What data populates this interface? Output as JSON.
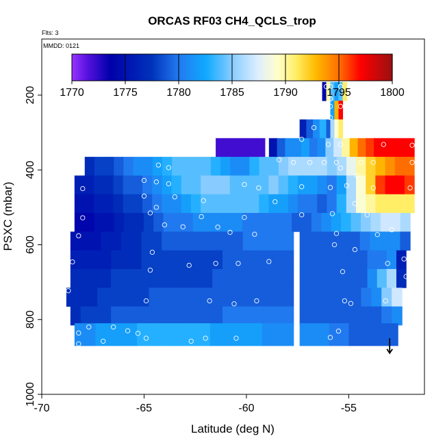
{
  "chart_data": {
    "type": "heatmap",
    "title": "ORCAS RF03 CH4_QCLS_trop",
    "flights_note": "Flts: 3",
    "date_note": "MMDD: 0121",
    "xlabel": "Latitude (deg N)",
    "ylabel": "PSXC (mbar)",
    "xlim": [
      -70,
      -51.3
    ],
    "ylim": [
      1000,
      50
    ],
    "y_reversed": true,
    "x_ticks": [
      -70,
      -65,
      -60,
      -55
    ],
    "y_ticks": [
      200,
      400,
      600,
      800,
      1000
    ],
    "grid": false,
    "colorbar": {
      "min": 1770,
      "max": 1800,
      "ticks": [
        1770,
        1775,
        1780,
        1785,
        1790,
        1795,
        1800
      ],
      "placement": "top-inside"
    },
    "arrow_note": {
      "x": -53,
      "y_from": 850,
      "y_to": 890
    },
    "rows": [
      {
        "p": 190,
        "h": 50,
        "segments": [
          {
            "x0": -56.3,
            "x1": -56.1,
            "values": [
              1774
            ]
          },
          {
            "x0": -56.1,
            "x1": -55.9,
            "values": [
              1790
            ]
          },
          {
            "x0": -55.9,
            "x1": -55.3,
            "values": [
              1784,
              1782,
              1784
            ]
          },
          {
            "x0": -55.3,
            "x1": -55.1,
            "values": [
              1791
            ]
          }
        ]
      },
      {
        "p": 240,
        "h": 50,
        "segments": [
          {
            "x0": -55.9,
            "x1": -55.7,
            "values": [
              1782
            ]
          },
          {
            "x0": -55.7,
            "x1": -55.5,
            "values": [
              1793
            ]
          },
          {
            "x0": -55.5,
            "x1": -55.3,
            "values": [
              1797
            ]
          }
        ]
      },
      {
        "p": 290,
        "h": 50,
        "segments": [
          {
            "x0": -57.4,
            "x1": -56.1,
            "values": [
              1776,
              1779,
              1781,
              1783
            ]
          },
          {
            "x0": -56.1,
            "x1": -55.9,
            "values": [
              1779
            ]
          },
          {
            "x0": -55.9,
            "x1": -55.3,
            "values": [
              1786,
              1789,
              1791
            ]
          }
        ]
      },
      {
        "p": 340,
        "h": 50,
        "segments": [
          {
            "x0": -61.5,
            "x1": -59.1,
            "values": [
              1772,
              1772
            ]
          },
          {
            "x0": -58.9,
            "x1": -51.8,
            "values": [
              1775,
              1779,
              1781,
              1781,
              1782,
              1780,
              1781,
              1785,
              1787,
              1790,
              1793,
              1795,
              1796,
              1797,
              1797,
              1797,
              1797,
              1797
            ]
          }
        ]
      },
      {
        "p": 390,
        "h": 50,
        "segments": [
          {
            "x0": -67.9,
            "x1": -51.8,
            "values": [
              1777,
              1778,
              1778,
              1779,
              1780,
              1781,
              1781,
              1782,
              1783,
              1784,
              1784,
              1784,
              1784,
              1783,
              1782,
              1781,
              1781,
              1783,
              1784,
              1784,
              1785,
              1786,
              1786,
              1786,
              1786,
              1785,
              1786,
              1788,
              1790,
              1792,
              1793,
              1794,
              1795,
              1795
            ]
          }
        ]
      },
      {
        "p": 440,
        "h": 50,
        "segments": [
          {
            "x0": -68.4,
            "x1": -51.8,
            "values": [
              1776,
              1776,
              1777,
              1777,
              1778,
              1779,
              1779,
              1780,
              1781,
              1782,
              1783,
              1784,
              1784,
              1785,
              1785,
              1785,
              1784,
              1784,
              1784,
              1784,
              1785,
              1784,
              1783,
              1782,
              1782,
              1781,
              1780,
              1782,
              1786,
              1789,
              1792,
              1796,
              1797,
              1797,
              1796
            ]
          }
        ]
      },
      {
        "p": 490,
        "h": 50,
        "segments": [
          {
            "x0": -68.4,
            "x1": -51.8,
            "values": [
              1775,
              1775,
              1776,
              1776,
              1777,
              1778,
              1778,
              1779,
              1780,
              1781,
              1781,
              1782,
              1783,
              1784,
              1784,
              1784,
              1784,
              1784,
              1784,
              1783,
              1782,
              1782,
              1781,
              1780,
              1780,
              1779,
              1780,
              1783,
              1786,
              1789,
              1790,
              1791,
              1791,
              1791,
              1791
            ]
          }
        ]
      },
      {
        "p": 540,
        "h": 50,
        "segments": [
          {
            "x0": -68.4,
            "x1": -52.0,
            "values": [
              1774,
              1774,
              1775,
              1775,
              1776,
              1777,
              1777,
              1778,
              1779,
              1780,
              1780,
              1780,
              1781,
              1781,
              1781,
              1781,
              1781,
              1780,
              1780,
              1780,
              1780,
              1780,
              1779,
              1779,
              1780,
              1781,
              1782,
              1783,
              1784,
              1785,
              1786,
              1787,
              1787,
              1786
            ]
          }
        ]
      },
      {
        "p": 590,
        "h": 50,
        "segments": [
          {
            "x0": -68.6,
            "x1": -57.7,
            "values": [
              1775,
              1775,
              1775,
              1776,
              1776,
              1777,
              1777,
              1778,
              1778,
              1779,
              1779,
              1779,
              1779,
              1779,
              1779,
              1779,
              1779,
              1780,
              1780,
              1780,
              1780,
              1780
            ]
          },
          {
            "x0": -57.4,
            "x1": -52.0,
            "values": [
              1779,
              1779,
              1779,
              1779,
              1779,
              1779,
              1780,
              1781,
              1781,
              1781,
              1779
            ]
          }
        ]
      },
      {
        "p": 640,
        "h": 50,
        "segments": [
          {
            "x0": -68.6,
            "x1": -57.7,
            "values": [
              1776,
              1776,
              1776,
              1776,
              1777,
              1777,
              1777,
              1778,
              1778,
              1778,
              1778,
              1778,
              1778,
              1778,
              1778,
              1779,
              1779,
              1779,
              1779,
              1779,
              1779,
              1779
            ]
          },
          {
            "x0": -57.4,
            "x1": -52.2,
            "values": [
              1779,
              1779,
              1779,
              1779,
              1779,
              1779,
              1779,
              1780,
              1780,
              1781,
              1776
            ]
          }
        ]
      },
      {
        "p": 690,
        "h": 50,
        "segments": [
          {
            "x0": -68.6,
            "x1": -57.7,
            "values": [
              1777,
              1777,
              1777,
              1777,
              1778,
              1778,
              1778,
              1778,
              1778,
              1778,
              1778,
              1778,
              1778,
              1778,
              1779,
              1779,
              1779,
              1779,
              1779,
              1779,
              1779,
              1779
            ]
          },
          {
            "x0": -57.4,
            "x1": -52.2,
            "values": [
              1779,
              1779,
              1779,
              1779,
              1779,
              1779,
              1779,
              1781,
              1784,
              1786,
              1777
            ]
          }
        ]
      },
      {
        "p": 740,
        "h": 50,
        "segments": [
          {
            "x0": -68.8,
            "x1": -57.7,
            "values": [
              1777,
              1777,
              1777,
              1778,
              1778,
              1778,
              1778,
              1778,
              1779,
              1779,
              1779,
              1779,
              1779,
              1779,
              1779,
              1779,
              1779,
              1779,
              1779,
              1779,
              1779,
              1779
            ]
          },
          {
            "x0": -57.4,
            "x1": -52.4,
            "values": [
              1779,
              1779,
              1779,
              1779,
              1779,
              1779,
              1780,
              1781,
              1785,
              1787
            ]
          }
        ]
      },
      {
        "p": 790,
        "h": 50,
        "segments": [
          {
            "x0": -68.6,
            "x1": -57.7,
            "values": [
              1777,
              1778,
              1778,
              1778,
              1779,
              1779,
              1779,
              1779,
              1779,
              1779,
              1779,
              1779,
              1779,
              1779,
              1779,
              1780,
              1780,
              1780,
              1780,
              1780,
              1780,
              1780
            ]
          },
          {
            "x0": -57.4,
            "x1": -52.4,
            "values": [
              1779,
              1779,
              1779,
              1779,
              1779,
              1779,
              1779,
              1779,
              1780,
              1781
            ]
          }
        ]
      },
      {
        "p": 840,
        "h": 60,
        "segments": [
          {
            "x0": -68.4,
            "x1": -57.7,
            "values": [
              1781,
              1781,
              1782,
              1782,
              1782,
              1782,
              1783,
              1783,
              1783,
              1783,
              1783,
              1783,
              1783,
              1782,
              1782,
              1782,
              1782,
              1782,
              1781,
              1781,
              1781
            ]
          },
          {
            "x0": -57.4,
            "x1": -52.6,
            "values": [
              1781,
              1781,
              1781,
              1780,
              1780,
              1779,
              1779,
              1779,
              1779,
              1779
            ]
          }
        ]
      }
    ],
    "points": [
      [
        -56.1,
        177
      ],
      [
        -55.9,
        177
      ],
      [
        -55.4,
        177
      ],
      [
        -55.9,
        210
      ],
      [
        -55.9,
        230
      ],
      [
        -55.4,
        230
      ],
      [
        -55.9,
        260
      ],
      [
        -56.7,
        287
      ],
      [
        -57.3,
        318
      ],
      [
        -56.0,
        332
      ],
      [
        -55.4,
        332
      ],
      [
        -53.3,
        332
      ],
      [
        -51.9,
        334
      ],
      [
        -58.4,
        373
      ],
      [
        -57.7,
        380
      ],
      [
        -56.9,
        380
      ],
      [
        -56.2,
        380
      ],
      [
        -55.6,
        380
      ],
      [
        -54.4,
        380
      ],
      [
        -53.8,
        380
      ],
      [
        -51.9,
        380
      ],
      [
        -64.3,
        387
      ],
      [
        -63.8,
        394
      ],
      [
        -55.4,
        395
      ],
      [
        -54.6,
        415
      ],
      [
        -65.0,
        428
      ],
      [
        -64.4,
        432
      ],
      [
        -63.8,
        437
      ],
      [
        -60.1,
        439
      ],
      [
        -59.4,
        448
      ],
      [
        -57.3,
        445
      ],
      [
        -55.9,
        447
      ],
      [
        -55.1,
        442
      ],
      [
        -53.8,
        448
      ],
      [
        -52.0,
        448
      ],
      [
        -68.0,
        450
      ],
      [
        -65.0,
        470
      ],
      [
        -63.5,
        472
      ],
      [
        -62.1,
        482
      ],
      [
        -58.6,
        485
      ],
      [
        -54.7,
        490
      ],
      [
        -64.4,
        500
      ],
      [
        -68.0,
        528
      ],
      [
        -64.7,
        515
      ],
      [
        -62.2,
        525
      ],
      [
        -60.1,
        527
      ],
      [
        -57.3,
        520
      ],
      [
        -55.8,
        517
      ],
      [
        -54.1,
        520
      ],
      [
        -64.0,
        547
      ],
      [
        -63.1,
        552
      ],
      [
        -61.4,
        553
      ],
      [
        -60.8,
        567
      ],
      [
        -59.6,
        572
      ],
      [
        -55.6,
        570
      ],
      [
        -53.6,
        573
      ],
      [
        -52.9,
        560
      ],
      [
        -68.2,
        576
      ],
      [
        -55.7,
        600
      ],
      [
        -54.7,
        613
      ],
      [
        -64.6,
        620
      ],
      [
        -64.7,
        668
      ],
      [
        -62.8,
        655
      ],
      [
        -61.5,
        650
      ],
      [
        -60.4,
        650
      ],
      [
        -58.9,
        645
      ],
      [
        -55.3,
        672
      ],
      [
        -53.1,
        650
      ],
      [
        -52.3,
        638
      ],
      [
        -52.2,
        685
      ],
      [
        -68.5,
        646
      ],
      [
        -68.7,
        723
      ],
      [
        -64.9,
        750
      ],
      [
        -61.8,
        750
      ],
      [
        -60.6,
        758
      ],
      [
        -59.5,
        750
      ],
      [
        -55.2,
        750
      ],
      [
        -54.9,
        757
      ],
      [
        -53.2,
        750
      ],
      [
        -67.7,
        820
      ],
      [
        -68.2,
        836
      ],
      [
        -66.5,
        820
      ],
      [
        -65.8,
        830
      ],
      [
        -65.3,
        837
      ],
      [
        -64.9,
        850
      ],
      [
        -62.7,
        858
      ],
      [
        -62.0,
        850
      ],
      [
        -60.5,
        850
      ],
      [
        -55.9,
        848
      ],
      [
        -55.5,
        831
      ],
      [
        -67.0,
        858
      ],
      [
        -68.2,
        865
      ]
    ]
  }
}
